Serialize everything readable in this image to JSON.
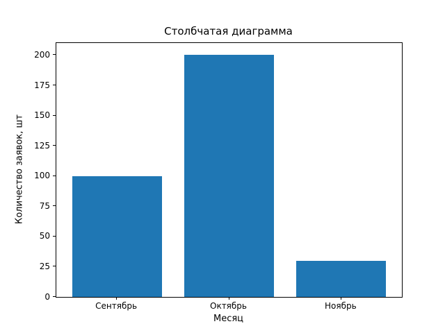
{
  "chart_data": {
    "type": "bar",
    "title": "Столбчатая диаграмма",
    "xlabel": "Месяц",
    "ylabel": "Количество заявок, шт",
    "categories": [
      "Сентябрь",
      "Октябрь",
      "Ноябрь"
    ],
    "values": [
      100,
      200,
      30
    ],
    "yticks": [
      0,
      25,
      50,
      75,
      100,
      125,
      150,
      175,
      200
    ],
    "ylim": [
      0,
      210
    ],
    "xlim": [
      -0.54,
      2.54
    ],
    "bar_width": 0.8,
    "bar_color": "#1f77b4",
    "grid": false,
    "legend": false
  }
}
